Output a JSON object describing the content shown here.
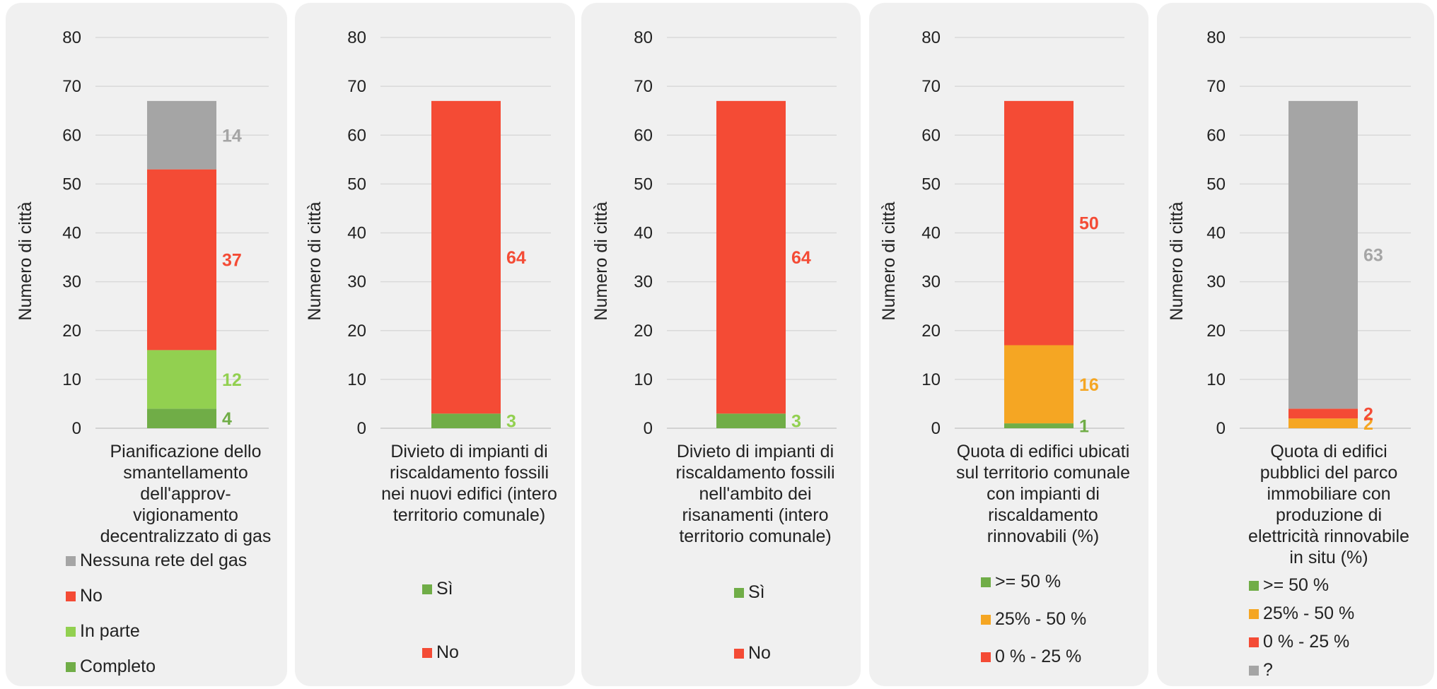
{
  "chart_data": [
    {
      "type": "bar",
      "stacked": true,
      "ylabel": "Numero di città",
      "ylim": [
        0,
        80
      ],
      "yticks": [
        0,
        10,
        20,
        30,
        40,
        50,
        60,
        70,
        80
      ],
      "categories": [
        "Pianificazione dello smantellamento dell'approv-vigionamento decentralizzato di gas"
      ],
      "series": [
        {
          "name": "Completo",
          "values": [
            4
          ],
          "color": "#70ad47",
          "label_color": "#70ad47"
        },
        {
          "name": "In parte",
          "values": [
            12
          ],
          "color": "#92d050",
          "label_color": "#92d050"
        },
        {
          "name": "No",
          "values": [
            37
          ],
          "color": "#f44b35",
          "label_color": "#f44b35"
        },
        {
          "name": "Nessuna rete del gas",
          "values": [
            14
          ],
          "color": "#a5a5a5",
          "label_color": "#a5a5a5"
        }
      ],
      "legend_order": [
        "Nessuna rete del gas",
        "No",
        "In parte",
        "Completo"
      ],
      "grid": true
    },
    {
      "type": "bar",
      "stacked": true,
      "ylabel": "Numero di città",
      "ylim": [
        0,
        80
      ],
      "yticks": [
        0,
        10,
        20,
        30,
        40,
        50,
        60,
        70,
        80
      ],
      "categories": [
        "Divieto di impianti di riscaldamento fossili nei nuovi edifici (intero territorio comunale)"
      ],
      "series": [
        {
          "name": "Sì",
          "values": [
            3
          ],
          "color": "#70ad47",
          "label_color": "#92d050"
        },
        {
          "name": "No",
          "values": [
            64
          ],
          "color": "#f44b35",
          "label_color": "#f44b35"
        }
      ],
      "legend_order": [
        "Sì",
        "No"
      ],
      "grid": true
    },
    {
      "type": "bar",
      "stacked": true,
      "ylabel": "Numero di città",
      "ylim": [
        0,
        80
      ],
      "yticks": [
        0,
        10,
        20,
        30,
        40,
        50,
        60,
        70,
        80
      ],
      "categories": [
        "Divieto di impianti di riscaldamento fossili nell'ambito dei risanamenti (intero territorio comunale)"
      ],
      "series": [
        {
          "name": "Sì",
          "values": [
            3
          ],
          "color": "#70ad47",
          "label_color": "#92d050"
        },
        {
          "name": "No",
          "values": [
            64
          ],
          "color": "#f44b35",
          "label_color": "#f44b35"
        }
      ],
      "legend_order": [
        "Sì",
        "No"
      ],
      "grid": true
    },
    {
      "type": "bar",
      "stacked": true,
      "ylabel": "Numero di città",
      "ylim": [
        0,
        80
      ],
      "yticks": [
        0,
        10,
        20,
        30,
        40,
        50,
        60,
        70,
        80
      ],
      "categories": [
        "Quota di edifici ubicati sul territorio comunale con impianti di riscaldamento rinnovabili (%)"
      ],
      "series": [
        {
          "name": ">= 50 %",
          "values": [
            1
          ],
          "color": "#70ad47",
          "label_color": "#70ad47"
        },
        {
          "name": "25% - 50 %",
          "values": [
            16
          ],
          "color": "#f5a623",
          "label_color": "#f5a623"
        },
        {
          "name": "0 % - 25 %",
          "values": [
            50
          ],
          "color": "#f44b35",
          "label_color": "#f44b35"
        }
      ],
      "legend_order": [
        ">= 50 %",
        "25% - 50 %",
        "0 % - 25 %"
      ],
      "grid": true
    },
    {
      "type": "bar",
      "stacked": true,
      "ylabel": "Numero di città",
      "ylim": [
        0,
        80
      ],
      "yticks": [
        0,
        10,
        20,
        30,
        40,
        50,
        60,
        70,
        80
      ],
      "categories": [
        "Quota di edifici pubblici del parco immobiliare con produzione di elettricità rinnovabile in situ (%)"
      ],
      "series": [
        {
          "name": ">= 50 %",
          "values": [
            0
          ],
          "color": "#70ad47",
          "label_color": "#70ad47"
        },
        {
          "name": "25% - 50 %",
          "values": [
            2
          ],
          "color": "#f5a623",
          "label_color": "#f5a623"
        },
        {
          "name": "0 % - 25 %",
          "values": [
            2
          ],
          "color": "#f44b35",
          "label_color": "#f44b35"
        },
        {
          "name": "?",
          "values": [
            63
          ],
          "color": "#a5a5a5",
          "label_color": "#a5a5a5"
        }
      ],
      "legend_order": [
        ">= 50 %",
        "25% - 50 %",
        "0 % - 25 %",
        "?"
      ],
      "grid": true
    }
  ]
}
